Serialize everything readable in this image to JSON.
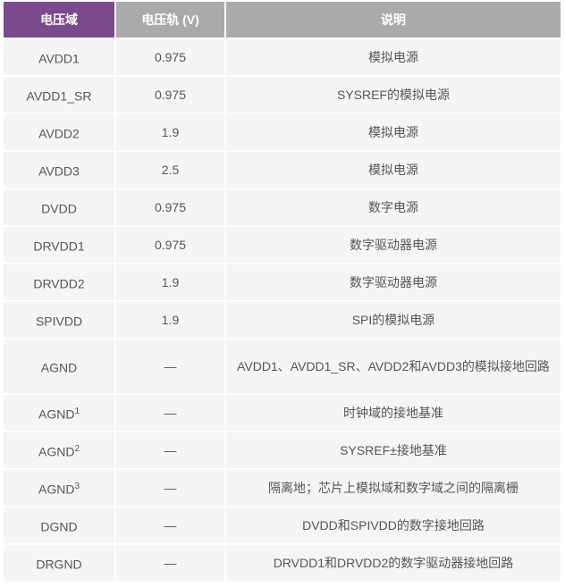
{
  "headers": [
    "电压域",
    "电压轨 (V)",
    "说明"
  ],
  "colors": {
    "header_accent": "#7b4a8c",
    "header_gray": "#aaaaaa",
    "cell_bg": "#f5f5f5"
  },
  "rows": [
    {
      "domain": "AVDD1",
      "sup": "",
      "rail": "0.975",
      "desc": "模拟电源"
    },
    {
      "domain": "AVDD1_SR",
      "sup": "",
      "rail": "0.975",
      "desc": "SYSREF的模拟电源"
    },
    {
      "domain": "AVDD2",
      "sup": "",
      "rail": "1.9",
      "desc": "模拟电源"
    },
    {
      "domain": "AVDD3",
      "sup": "",
      "rail": "2.5",
      "desc": "模拟电源"
    },
    {
      "domain": "DVDD",
      "sup": "",
      "rail": "0.975",
      "desc": "数字电源"
    },
    {
      "domain": "DRVDD1",
      "sup": "",
      "rail": "0.975",
      "desc": "数字驱动器电源"
    },
    {
      "domain": "DRVDD2",
      "sup": "",
      "rail": "1.9",
      "desc": "数字驱动器电源"
    },
    {
      "domain": "SPIVDD",
      "sup": "",
      "rail": "1.9",
      "desc": "SPI的模拟电源"
    },
    {
      "domain": "AGND",
      "sup": "",
      "rail": "—",
      "desc": "AVDD1、AVDD1_SR、AVDD2和AVDD3的模拟接地回路"
    },
    {
      "domain": "AGND",
      "sup": "1",
      "rail": "—",
      "desc": "时钟域的接地基准"
    },
    {
      "domain": "AGND",
      "sup": "2",
      "rail": "—",
      "desc": "SYSREF±接地基准"
    },
    {
      "domain": "AGND",
      "sup": "3",
      "rail": "—",
      "desc": "隔离地；芯片上模拟域和数字域之间的隔离栅"
    },
    {
      "domain": "DGND",
      "sup": "",
      "rail": "—",
      "desc": "DVDD和SPIVDD的数字接地回路"
    },
    {
      "domain": "DRGND",
      "sup": "",
      "rail": "—",
      "desc": "DRVDD1和DRVDD2的数字驱动器接地回路"
    }
  ]
}
